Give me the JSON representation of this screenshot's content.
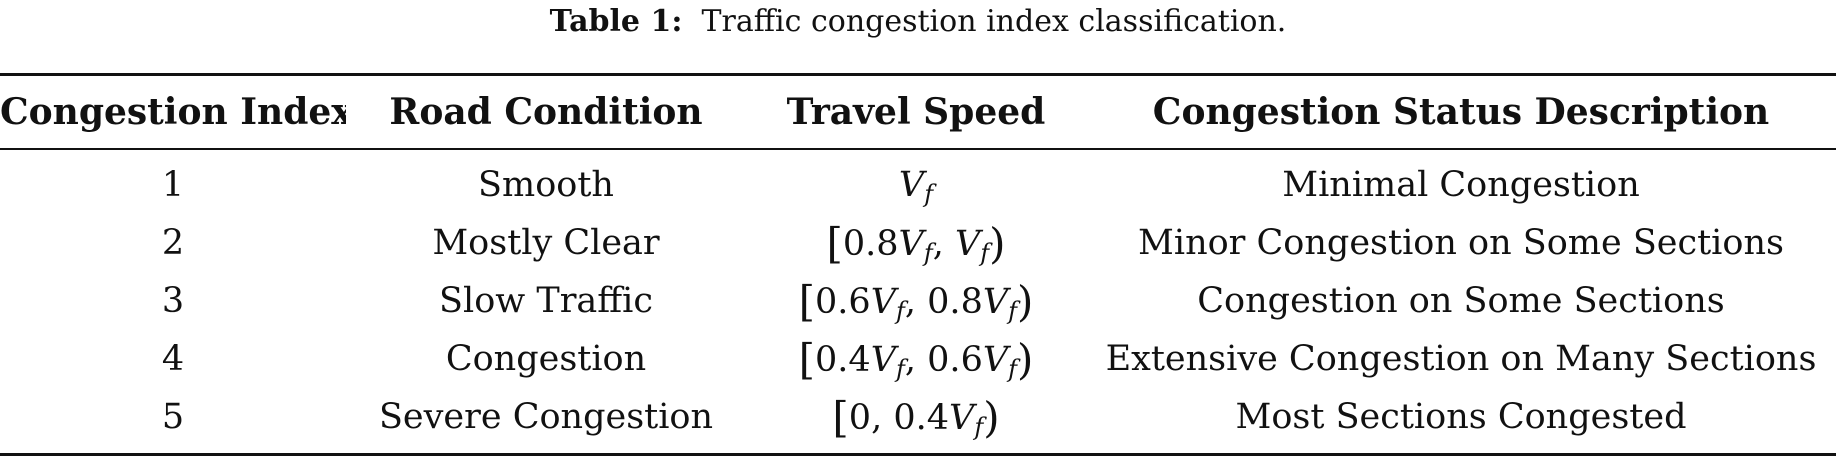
{
  "caption": {
    "label": "Table 1:",
    "text": "Traffic congestion index classification."
  },
  "table": {
    "headers": [
      "Congestion Index",
      "Road Condition",
      "Travel Speed",
      "Congestion Status Description"
    ],
    "rows": [
      {
        "index": "1",
        "condition": "Smooth",
        "speed": "Vf",
        "description": "Minimal Congestion"
      },
      {
        "index": "2",
        "condition": "Mostly Clear",
        "speed": "[0.8Vf, Vf)",
        "description": "Minor Congestion on Some Sections"
      },
      {
        "index": "3",
        "condition": "Slow Traffic",
        "speed": "[0.6Vf, 0.8Vf)",
        "description": "Congestion on Some Sections"
      },
      {
        "index": "4",
        "condition": "Congestion",
        "speed": "[0.4Vf, 0.6Vf)",
        "description": "Extensive Congestion on Many Sections"
      },
      {
        "index": "5",
        "condition": "Severe Congestion",
        "speed": "[0, 0.4Vf)",
        "description": "Most Sections Congested"
      }
    ]
  }
}
